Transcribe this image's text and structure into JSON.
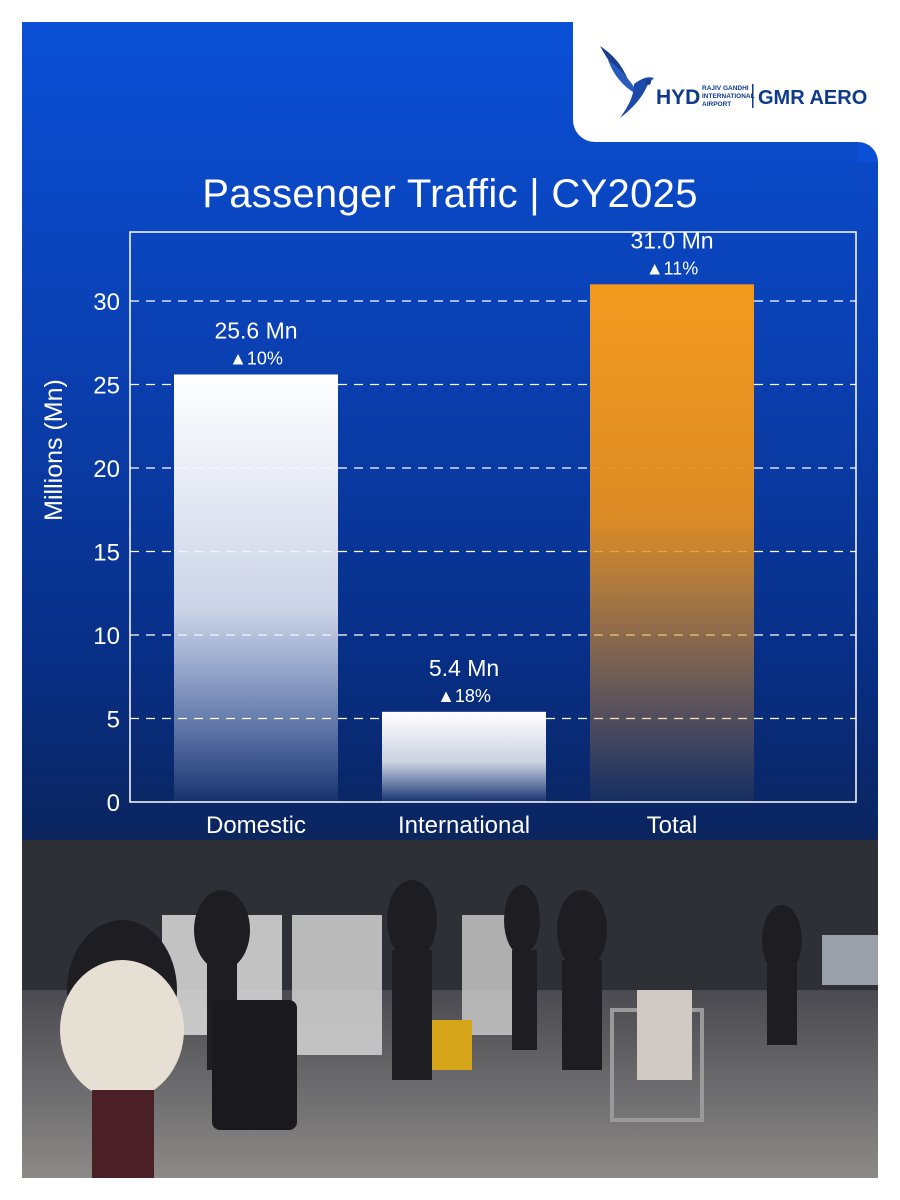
{
  "brand": {
    "hyd": "HYD",
    "airport_line1": "RAJIV GANDHI",
    "airport_line2": "INTERNATIONAL",
    "airport_line3": "AIRPORT",
    "gmr": "GMR AERO"
  },
  "chart_data": {
    "type": "bar",
    "title": "Passenger Traffic | CY2025",
    "xlabel": "",
    "ylabel": "Millions (Mn)",
    "ylim": [
      0,
      35
    ],
    "yticks": [
      0,
      5,
      10,
      15,
      20,
      25,
      30
    ],
    "grid": "dashed-horizontal",
    "categories": [
      "Domestic",
      "International",
      "Total"
    ],
    "values": [
      25.6,
      5.4,
      31.0
    ],
    "value_labels": [
      "25.6 Mn",
      "5.4 Mn",
      "31.0 Mn"
    ],
    "growth_labels": [
      "▲10%",
      "▲18%",
      "▲11%"
    ],
    "colors": [
      "#ffffff",
      "#ffffff",
      "#f39a1e"
    ]
  }
}
